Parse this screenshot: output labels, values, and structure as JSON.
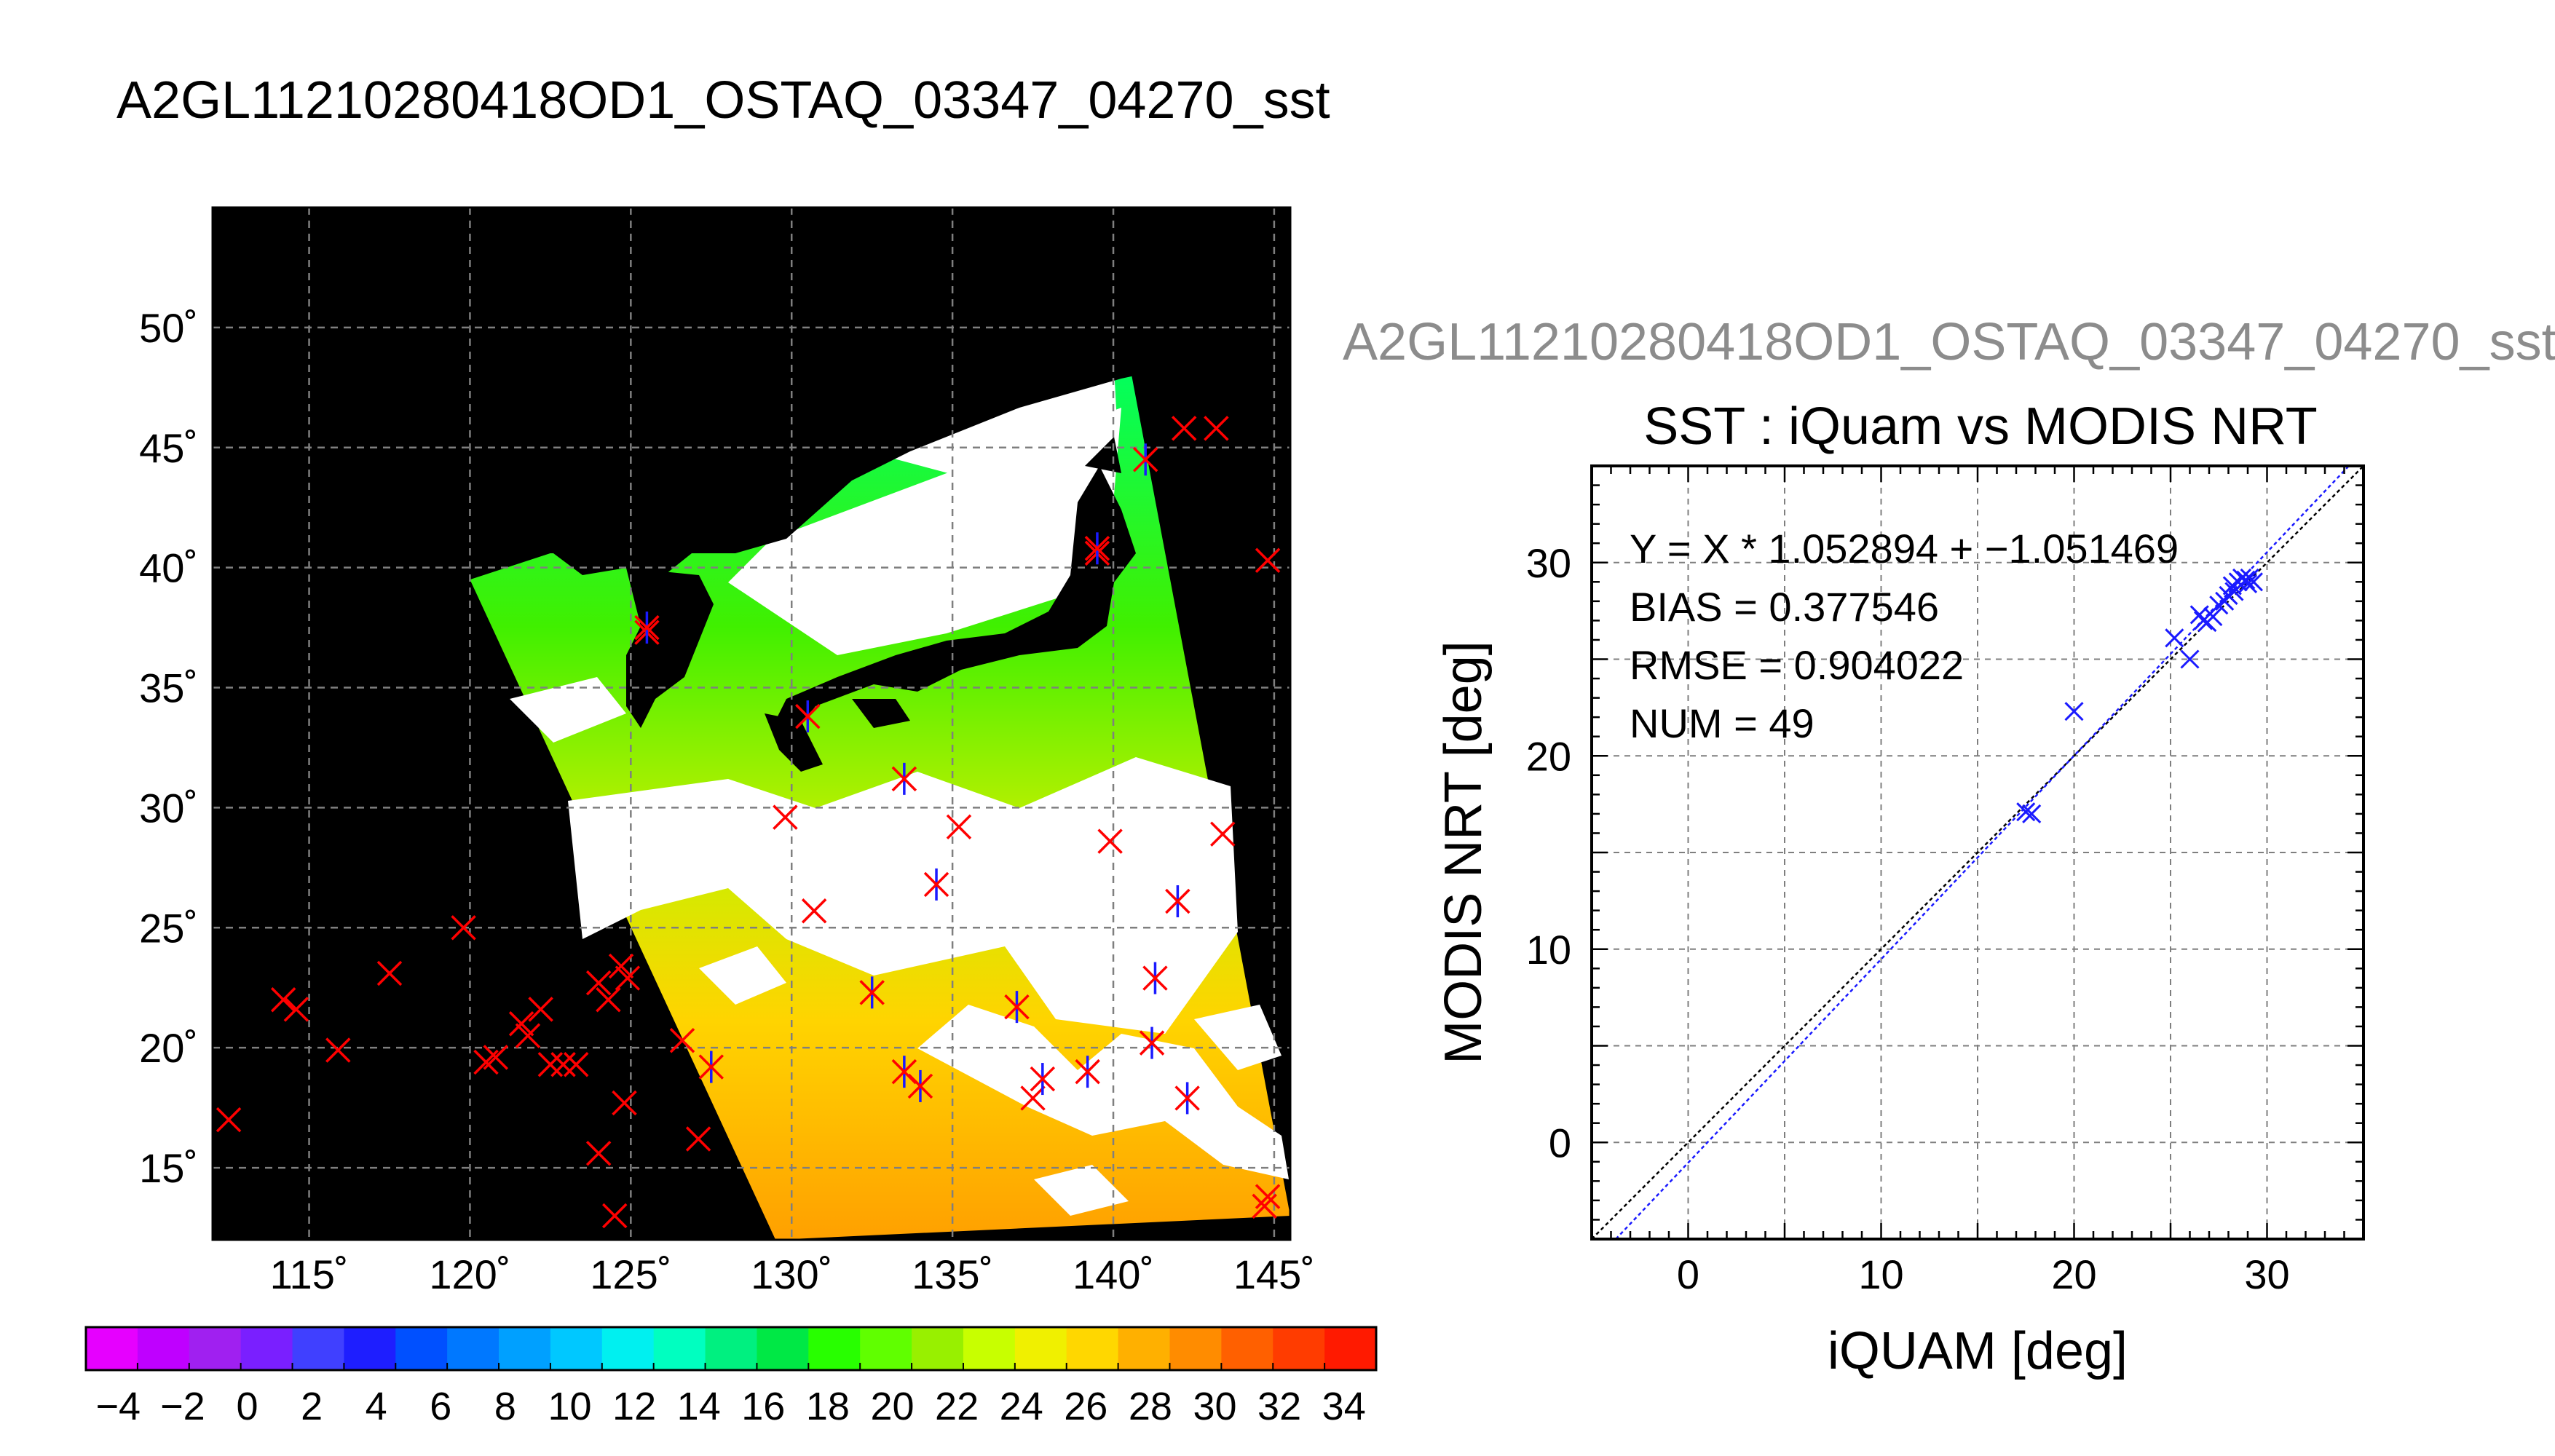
{
  "page": {
    "main_title": "A2GL11210280418OD1_OSTAQ_03347_04270_sst",
    "right_title": "A2GL11210280418OD1_OSTAQ_03347_04270_sst"
  },
  "colors": {
    "map_background": "#000000",
    "cloud": "#ffffff",
    "marker_red": "#ff0000",
    "marker_blue": "#1a1aff",
    "grid": "#7f7f7f"
  },
  "chart_data": [
    {
      "type": "map-scatter",
      "title": "",
      "lon_range": [
        112,
        145.5
      ],
      "lat_range": [
        12,
        55
      ],
      "lon_ticks": [
        115,
        120,
        125,
        130,
        135,
        140,
        145
      ],
      "lat_ticks": [
        15,
        20,
        25,
        30,
        35,
        40,
        45,
        50
      ],
      "lon_tick_labels": [
        "115˚",
        "120˚",
        "125˚",
        "130˚",
        "135˚",
        "140˚",
        "145˚"
      ],
      "lat_tick_labels": [
        "15˚",
        "20˚",
        "25˚",
        "30˚",
        "35˚",
        "40˚",
        "45˚",
        "50˚"
      ],
      "grid": true,
      "swath_corners_lonlat": [
        [
          120,
          39.5
        ],
        [
          140.5,
          48.5
        ],
        [
          145.5,
          13
        ],
        [
          129.5,
          12
        ]
      ],
      "matched_points": [
        [
          141.0,
          44.5
        ],
        [
          139.5,
          40.8
        ],
        [
          125.5,
          37.5
        ],
        [
          130.5,
          33.8
        ],
        [
          133.5,
          31.2
        ],
        [
          134.5,
          26.8
        ],
        [
          132.5,
          22.3
        ],
        [
          137.0,
          21.7
        ],
        [
          133.5,
          19.0
        ],
        [
          134.0,
          18.4
        ],
        [
          137.8,
          18.7
        ],
        [
          139.2,
          19.0
        ],
        [
          141.2,
          20.2
        ],
        [
          142.3,
          17.9
        ],
        [
          141.3,
          22.9
        ],
        [
          142.0,
          26.1
        ],
        [
          127.5,
          19.2
        ]
      ],
      "insitu_points": [
        [
          142.2,
          45.8
        ],
        [
          143.2,
          45.8
        ],
        [
          139.5,
          40.6
        ],
        [
          144.8,
          40.3
        ],
        [
          125.5,
          37.3
        ],
        [
          129.8,
          29.6
        ],
        [
          130.7,
          25.7
        ],
        [
          135.2,
          29.2
        ],
        [
          139.9,
          28.6
        ],
        [
          143.4,
          28.9
        ],
        [
          112.5,
          17.0
        ],
        [
          114.2,
          22.0
        ],
        [
          114.6,
          21.6
        ],
        [
          115.9,
          19.9
        ],
        [
          117.5,
          23.1
        ],
        [
          119.8,
          25.0
        ],
        [
          120.5,
          19.4
        ],
        [
          120.8,
          19.6
        ],
        [
          121.6,
          21.0
        ],
        [
          121.8,
          20.5
        ],
        [
          122.2,
          21.6
        ],
        [
          122.5,
          19.3
        ],
        [
          122.9,
          19.3
        ],
        [
          123.3,
          19.3
        ],
        [
          124.0,
          22.7
        ],
        [
          124.3,
          22.0
        ],
        [
          124.7,
          23.4
        ],
        [
          124.9,
          22.9
        ],
        [
          124.0,
          15.6
        ],
        [
          124.8,
          17.7
        ],
        [
          124.5,
          13.0
        ],
        [
          126.6,
          20.3
        ],
        [
          127.1,
          16.2
        ],
        [
          137.5,
          17.9
        ],
        [
          144.7,
          13.4
        ],
        [
          144.8,
          13.8
        ]
      ]
    },
    {
      "type": "scatter",
      "title": "SST : iQuam vs MODIS NRT",
      "xlabel": "iQUAM [deg]",
      "ylabel": "MODIS NRT [deg]",
      "xlim": [
        -5,
        35
      ],
      "ylim": [
        -5,
        35
      ],
      "x_ticks": [
        0,
        10,
        20,
        30
      ],
      "y_ticks": [
        0,
        10,
        20,
        30
      ],
      "grid": true,
      "stats": {
        "fit": "Y = X * 1.052894 + −1.051469",
        "bias": "BIAS = 0.377546",
        "rmse": "RMSE = 0.904022",
        "num": "NUM = 49"
      },
      "regression": {
        "slope": 1.052894,
        "intercept": -1.051469
      },
      "points": [
        [
          17.5,
          17.1
        ],
        [
          17.8,
          17.0
        ],
        [
          20.0,
          22.3
        ],
        [
          25.2,
          26.1
        ],
        [
          26.0,
          25.0
        ],
        [
          26.5,
          27.3
        ],
        [
          26.7,
          27.0
        ],
        [
          26.9,
          26.9
        ],
        [
          27.2,
          27.2
        ],
        [
          27.8,
          28.0
        ],
        [
          28.0,
          28.3
        ],
        [
          28.2,
          28.8
        ],
        [
          28.5,
          29.0
        ],
        [
          28.7,
          29.2
        ],
        [
          28.9,
          29.1
        ],
        [
          29.0,
          28.9
        ],
        [
          29.1,
          29.2
        ],
        [
          29.3,
          29.0
        ],
        [
          27.5,
          27.8
        ],
        [
          28.3,
          28.5
        ]
      ]
    },
    {
      "type": "colorbar",
      "range": [
        -5,
        35
      ],
      "step": 2,
      "tick_values": [
        -4,
        -2,
        0,
        2,
        4,
        6,
        8,
        10,
        12,
        14,
        16,
        18,
        20,
        22,
        24,
        26,
        28,
        30,
        32,
        34
      ],
      "tick_labels": [
        "−4",
        "−2",
        "0",
        "2",
        "4",
        "6",
        "8",
        "10",
        "12",
        "14",
        "16",
        "18",
        "20",
        "22",
        "24",
        "26",
        "28",
        "30",
        "32",
        "34"
      ],
      "colors": [
        "#e600ff",
        "#bf00ff",
        "#a020f0",
        "#7a1fff",
        "#4040ff",
        "#1e1eff",
        "#0050ff",
        "#0078ff",
        "#00a0ff",
        "#00c8ff",
        "#00f0f0",
        "#00ffc0",
        "#00f080",
        "#00e845",
        "#28ff00",
        "#60ff00",
        "#98f000",
        "#c8ff00",
        "#f0f000",
        "#ffd700",
        "#ffb000",
        "#ff8c00",
        "#ff6000",
        "#ff3c00",
        "#ff1a00"
      ]
    }
  ]
}
